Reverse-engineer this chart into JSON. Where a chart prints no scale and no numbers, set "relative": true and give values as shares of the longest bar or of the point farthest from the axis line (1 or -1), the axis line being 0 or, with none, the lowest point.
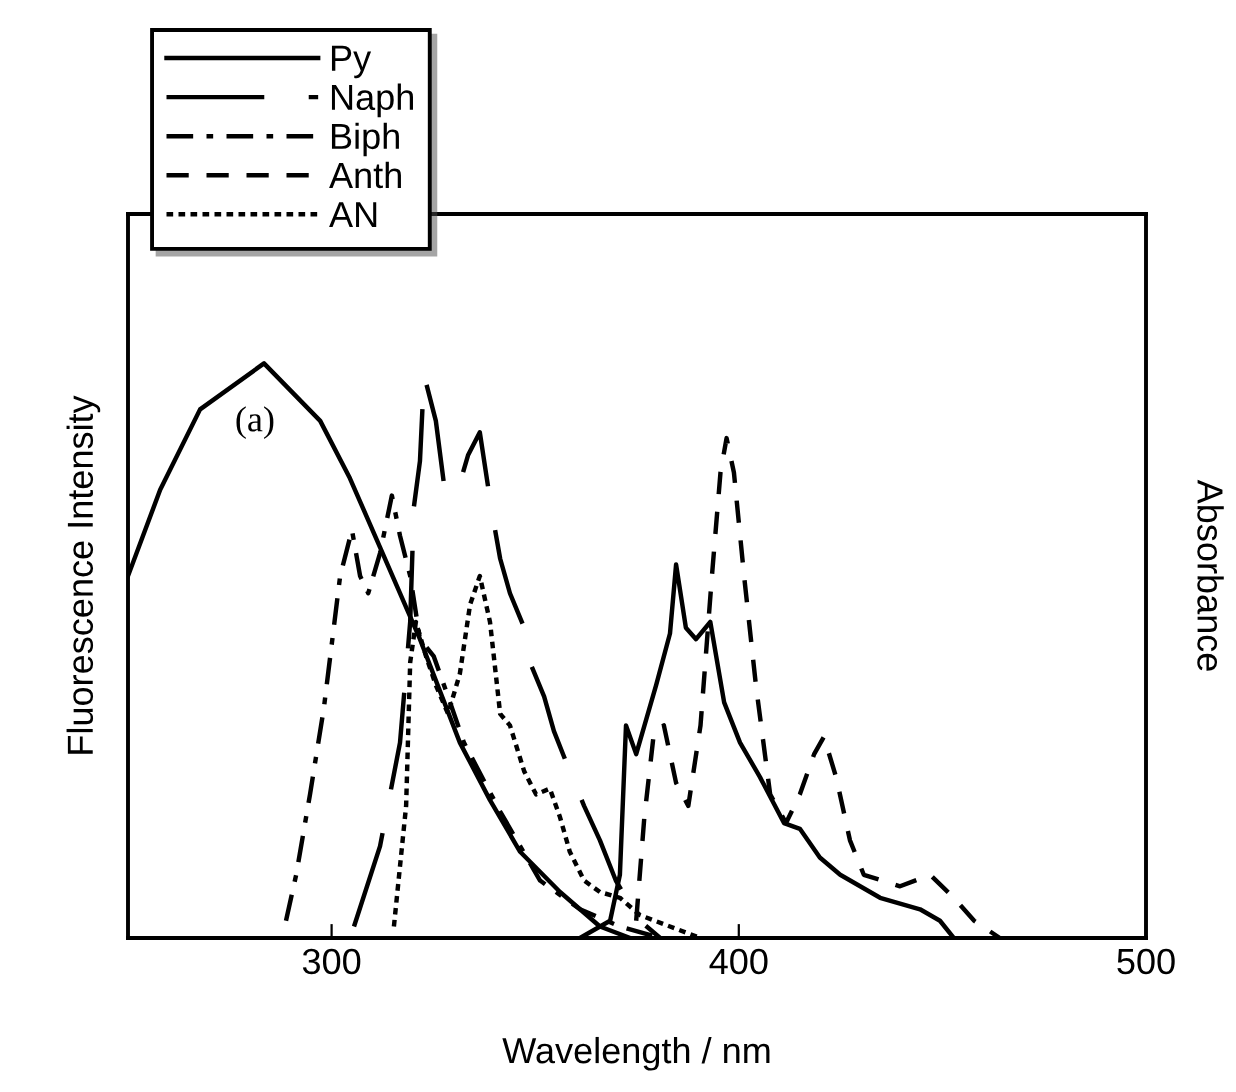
{
  "chart_data": {
    "type": "line",
    "relative": true,
    "xlabel": "Wavelength / nm",
    "ylabel": "Fluorescence Intensity",
    "y2label": "Absorbance",
    "xlim": [
      250,
      500
    ],
    "xticks": [
      300,
      400,
      500
    ],
    "grid": false,
    "legend": "top left",
    "marker": "none",
    "annotations": [
      "(a)"
    ],
    "series": [
      {
        "name": "Py",
        "color": "#000000",
        "line_style": "solid",
        "x": [
          250,
          257.9,
          267.7,
          283.4,
          297.2,
          304.5,
          311.9,
          321.7,
          331.5,
          338.9,
          346.3,
          356.1,
          365.9,
          373.3
        ],
        "values": [
          0.63,
          0.78,
          0.92,
          1.0,
          0.9,
          0.8,
          0.68,
          0.52,
          0.34,
          0.24,
          0.15,
          0.08,
          0.02,
          0
        ]
      },
      {
        "name": "Naph",
        "color": "#000000",
        "line_style": "longdash",
        "x": [
          305.5,
          311.9,
          316.8,
          319.3,
          320.2,
          321.7,
          322.7,
          325.6,
          327.6,
          330.6,
          333.5,
          336.4,
          339.4,
          341.4,
          343.8,
          347.3,
          348.7,
          352.2,
          354.6,
          358.5,
          362.0,
          365.9,
          369.8,
          375.7,
          380.7
        ],
        "values": [
          0.02,
          0.16,
          0.34,
          0.55,
          0.75,
          0.83,
          0.98,
          0.9,
          0.79,
          0.77,
          0.84,
          0.88,
          0.74,
          0.66,
          0.6,
          0.54,
          0.48,
          0.42,
          0.36,
          0.29,
          0.23,
          0.17,
          0.1,
          0.03,
          0
        ]
      },
      {
        "name": "Biph",
        "color": "#000000",
        "line_style": "dashdot",
        "x": [
          288.8,
          291.3,
          294.7,
          298.1,
          302.1,
          305.0,
          307.0,
          309.0,
          311.9,
          314.8,
          316.8,
          319.3,
          321.7,
          325.1,
          329.1,
          332.5,
          341.4,
          351.2,
          361.0,
          370.8,
          380.7
        ],
        "values": [
          0.03,
          0.11,
          0.25,
          0.4,
          0.63,
          0.71,
          0.63,
          0.6,
          0.67,
          0.77,
          0.7,
          0.63,
          0.52,
          0.49,
          0.41,
          0.34,
          0.22,
          0.1,
          0.05,
          0.02,
          0
        ]
      },
      {
        "name": "Anth",
        "color": "#000000",
        "line_style": "dashed",
        "x": [
          374.8,
          376.8,
          379.2,
          381.6,
          384.6,
          387.6,
          390.6,
          393.4,
          395.5,
          397.0,
          398.8,
          401.3,
          404.2,
          407.7,
          411.6,
          415.0,
          418.5,
          420.9,
          423.9,
          427.3,
          430.7,
          439.6,
          447.0,
          452.8,
          457.8,
          464.1
        ],
        "values": [
          0.03,
          0.21,
          0.36,
          0.37,
          0.27,
          0.23,
          0.37,
          0.63,
          0.81,
          0.87,
          0.81,
          0.63,
          0.44,
          0.25,
          0.2,
          0.25,
          0.32,
          0.35,
          0.28,
          0.17,
          0.11,
          0.09,
          0.11,
          0.07,
          0.03,
          0
        ]
      },
      {
        "name": "AN",
        "color": "#000000",
        "line_style": "dotted",
        "x": [
          315.3,
          318.3,
          319.3,
          320.7,
          323.2,
          325.6,
          328.6,
          331.5,
          334.0,
          336.4,
          338.9,
          341.4,
          343.8,
          347.3,
          350.2,
          353.6,
          356.1,
          358.5,
          362.0,
          365.9,
          370.8,
          375.7,
          383.1,
          390.5
        ],
        "values": [
          0.02,
          0.23,
          0.48,
          0.55,
          0.49,
          0.44,
          0.39,
          0.46,
          0.58,
          0.63,
          0.55,
          0.39,
          0.37,
          0.29,
          0.25,
          0.26,
          0.21,
          0.15,
          0.1,
          0.08,
          0.07,
          0.04,
          0.02,
          0
        ]
      },
      {
        "color": "#000000",
        "line_style": "solid",
        "x": [
          361.0,
          368.4,
          370.8,
          372.3,
          374.8,
          379.7,
          383.1,
          384.6,
          387.0,
          389.5,
          393.0,
          396.4,
          400.3,
          405.2,
          411.1,
          415.0,
          419.9,
          424.9,
          434.7,
          444.5,
          449.4,
          452.8
        ],
        "values": [
          0,
          0.03,
          0.11,
          0.37,
          0.32,
          0.44,
          0.53,
          0.65,
          0.54,
          0.52,
          0.55,
          0.41,
          0.34,
          0.28,
          0.2,
          0.19,
          0.14,
          0.11,
          0.07,
          0.05,
          0.03,
          0
        ]
      }
    ]
  }
}
